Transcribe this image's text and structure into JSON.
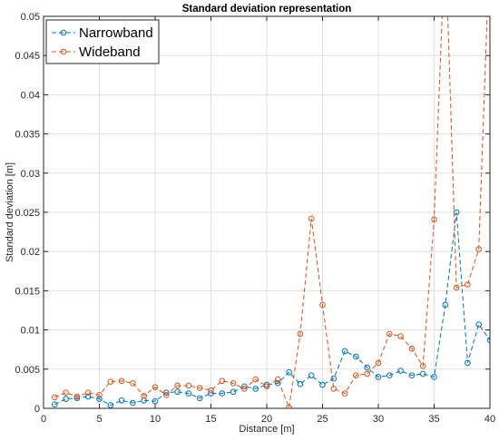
{
  "chart_data": {
    "type": "line",
    "title": "Standard deviation representation",
    "xlabel": "Distance [m]",
    "ylabel": "Standard deviation [m]",
    "xlim": [
      0,
      40
    ],
    "ylim": [
      0,
      0.05
    ],
    "xticks": [
      0,
      5,
      10,
      15,
      20,
      25,
      30,
      35,
      40
    ],
    "xtick_labels": [
      "0",
      "5",
      "10",
      "15",
      "20",
      "25",
      "30",
      "35",
      "40"
    ],
    "yticks": [
      0,
      0.005,
      0.01,
      0.015,
      0.02,
      0.025,
      0.03,
      0.035,
      0.04,
      0.045,
      0.05
    ],
    "ytick_labels": [
      "0",
      "0.005",
      "0.01",
      "0.015",
      "0.02",
      "0.025",
      "0.03",
      "0.035",
      "0.04",
      "0.045",
      "0.05"
    ],
    "grid": true,
    "legend_position": "top-left",
    "x": [
      1,
      2,
      3,
      4,
      5,
      6,
      7,
      8,
      9,
      10,
      11,
      12,
      13,
      14,
      15,
      16,
      17,
      18,
      19,
      20,
      21,
      22,
      23,
      24,
      25,
      26,
      27,
      28,
      29,
      30,
      31,
      32,
      33,
      34,
      35,
      36,
      37,
      38,
      39,
      40
    ],
    "series": [
      {
        "name": "Narrowband",
        "color": "#0072BD",
        "line_style": "dashed",
        "marker": "circle",
        "values": [
          0.0005,
          0.0012,
          0.0013,
          0.0015,
          0.0012,
          0.0004,
          0.001,
          0.0007,
          0.001,
          0.0009,
          0.002,
          0.0021,
          0.0019,
          0.0013,
          0.0019,
          0.0019,
          0.0021,
          0.0028,
          0.0025,
          0.003,
          0.0032,
          0.0046,
          0.0031,
          0.0042,
          0.003,
          0.0038,
          0.0073,
          0.0066,
          0.0052,
          0.004,
          0.0042,
          0.0048,
          0.0042,
          0.0044,
          0.004,
          0.0132,
          0.025,
          0.0058,
          0.0107,
          0.0087
        ]
      },
      {
        "name": "Wideband",
        "color": "#D95319",
        "line_style": "dashed",
        "marker": "circle",
        "values": [
          0.0014,
          0.002,
          0.0015,
          0.002,
          0.0017,
          0.0034,
          0.0035,
          0.0032,
          0.0016,
          0.0027,
          0.0017,
          0.0029,
          0.0029,
          0.0026,
          0.0023,
          0.0035,
          0.0032,
          0.0025,
          0.0037,
          0.0028,
          0.0037,
          0.0001,
          0.0095,
          0.0242,
          0.0132,
          0.0025,
          0.0019,
          0.0042,
          0.0044,
          0.0058,
          0.0095,
          0.0092,
          0.0076,
          0.0054,
          0.0241,
          0.06,
          0.0154,
          0.0158,
          0.0203,
          0.06
        ],
        "offscale_points": [
          36,
          40
        ]
      }
    ]
  }
}
